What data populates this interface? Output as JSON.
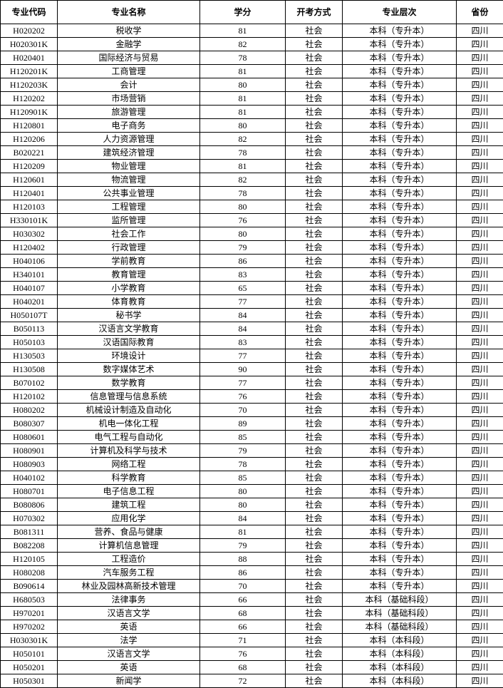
{
  "columns": [
    "专业代码",
    "专业名称",
    "学分",
    "开考方式",
    "专业层次",
    "省份"
  ],
  "rows": [
    [
      "H020202",
      "税收学",
      "81",
      "社会",
      "本科（专升本）",
      "四川"
    ],
    [
      "H020301K",
      "金融学",
      "82",
      "社会",
      "本科（专升本）",
      "四川"
    ],
    [
      "H020401",
      "国际经济与贸易",
      "78",
      "社会",
      "本科（专升本）",
      "四川"
    ],
    [
      "H120201K",
      "工商管理",
      "81",
      "社会",
      "本科（专升本）",
      "四川"
    ],
    [
      "H120203K",
      "会计",
      "80",
      "社会",
      "本科（专升本）",
      "四川"
    ],
    [
      "H120202",
      "市场营销",
      "81",
      "社会",
      "本科（专升本）",
      "四川"
    ],
    [
      "H120901K",
      "旅游管理",
      "81",
      "社会",
      "本科（专升本）",
      "四川"
    ],
    [
      "H120801",
      "电子商务",
      "80",
      "社会",
      "本科（专升本）",
      "四川"
    ],
    [
      "H120206",
      "人力资源管理",
      "82",
      "社会",
      "本科（专升本）",
      "四川"
    ],
    [
      "B020221",
      "建筑经济管理",
      "78",
      "社会",
      "本科（专升本）",
      "四川"
    ],
    [
      "H120209",
      "物业管理",
      "81",
      "社会",
      "本科（专升本）",
      "四川"
    ],
    [
      "H120601",
      "物流管理",
      "82",
      "社会",
      "本科（专升本）",
      "四川"
    ],
    [
      "H120401",
      "公共事业管理",
      "78",
      "社会",
      "本科（专升本）",
      "四川"
    ],
    [
      "H120103",
      "工程管理",
      "80",
      "社会",
      "本科（专升本）",
      "四川"
    ],
    [
      "H330101K",
      "监所管理",
      "76",
      "社会",
      "本科（专升本）",
      "四川"
    ],
    [
      "H030302",
      "社会工作",
      "80",
      "社会",
      "本科（专升本）",
      "四川"
    ],
    [
      "H120402",
      "行政管理",
      "79",
      "社会",
      "本科（专升本）",
      "四川"
    ],
    [
      "H040106",
      "学前教育",
      "86",
      "社会",
      "本科（专升本）",
      "四川"
    ],
    [
      "H340101",
      "教育管理",
      "83",
      "社会",
      "本科（专升本）",
      "四川"
    ],
    [
      "H040107",
      "小学教育",
      "65",
      "社会",
      "本科（专升本）",
      "四川"
    ],
    [
      "H040201",
      "体育教育",
      "77",
      "社会",
      "本科（专升本）",
      "四川"
    ],
    [
      "H050107T",
      "秘书学",
      "84",
      "社会",
      "本科（专升本）",
      "四川"
    ],
    [
      "B050113",
      "汉语言文学教育",
      "84",
      "社会",
      "本科（专升本）",
      "四川"
    ],
    [
      "H050103",
      "汉语国际教育",
      "83",
      "社会",
      "本科（专升本）",
      "四川"
    ],
    [
      "H130503",
      "环境设计",
      "77",
      "社会",
      "本科（专升本）",
      "四川"
    ],
    [
      "H130508",
      "数字媒体艺术",
      "90",
      "社会",
      "本科（专升本）",
      "四川"
    ],
    [
      "B070102",
      "数学教育",
      "77",
      "社会",
      "本科（专升本）",
      "四川"
    ],
    [
      "H120102",
      "信息管理与信息系统",
      "76",
      "社会",
      "本科（专升本）",
      "四川"
    ],
    [
      "H080202",
      "机械设计制造及自动化",
      "70",
      "社会",
      "本科（专升本）",
      "四川"
    ],
    [
      "B080307",
      "机电一体化工程",
      "89",
      "社会",
      "本科（专升本）",
      "四川"
    ],
    [
      "H080601",
      "电气工程与自动化",
      "85",
      "社会",
      "本科（专升本）",
      "四川"
    ],
    [
      "H080901",
      "计算机及科学与技术",
      "79",
      "社会",
      "本科（专升本）",
      "四川"
    ],
    [
      "H080903",
      "网络工程",
      "78",
      "社会",
      "本科（专升本）",
      "四川"
    ],
    [
      "H040102",
      "科学教育",
      "85",
      "社会",
      "本科（专升本）",
      "四川"
    ],
    [
      "H080701",
      "电子信息工程",
      "80",
      "社会",
      "本科（专升本）",
      "四川"
    ],
    [
      "B080806",
      "建筑工程",
      "80",
      "社会",
      "本科（专升本）",
      "四川"
    ],
    [
      "H070302",
      "应用化学",
      "84",
      "社会",
      "本科（专升本）",
      "四川"
    ],
    [
      "B081311",
      "营养、食品与健康",
      "81",
      "社会",
      "本科（专升本）",
      "四川"
    ],
    [
      "B082208",
      "计算机信息管理",
      "79",
      "社会",
      "本科（专升本）",
      "四川"
    ],
    [
      "H120105",
      "工程造价",
      "88",
      "社会",
      "本科（专升本）",
      "四川"
    ],
    [
      "H080208",
      "汽车服务工程",
      "86",
      "社会",
      "本科（专升本）",
      "四川"
    ],
    [
      "B090614",
      "林业及园林高新技术管理",
      "70",
      "社会",
      "本科（专升本）",
      "四川"
    ],
    [
      "H680503",
      "法律事务",
      "66",
      "社会",
      "本科（基础科段）",
      "四川"
    ],
    [
      "H970201",
      "汉语言文学",
      "68",
      "社会",
      "本科（基础科段）",
      "四川"
    ],
    [
      "H970202",
      "英语",
      "66",
      "社会",
      "本科（基础科段）",
      "四川"
    ],
    [
      "H030301K",
      "法学",
      "71",
      "社会",
      "本科（本科段）",
      "四川"
    ],
    [
      "H050101",
      "汉语言文学",
      "76",
      "社会",
      "本科（本科段）",
      "四川"
    ],
    [
      "H050201",
      "英语",
      "68",
      "社会",
      "本科（本科段）",
      "四川"
    ],
    [
      "H050301",
      "新闻学",
      "72",
      "社会",
      "本科（本科段）",
      "四川"
    ]
  ]
}
